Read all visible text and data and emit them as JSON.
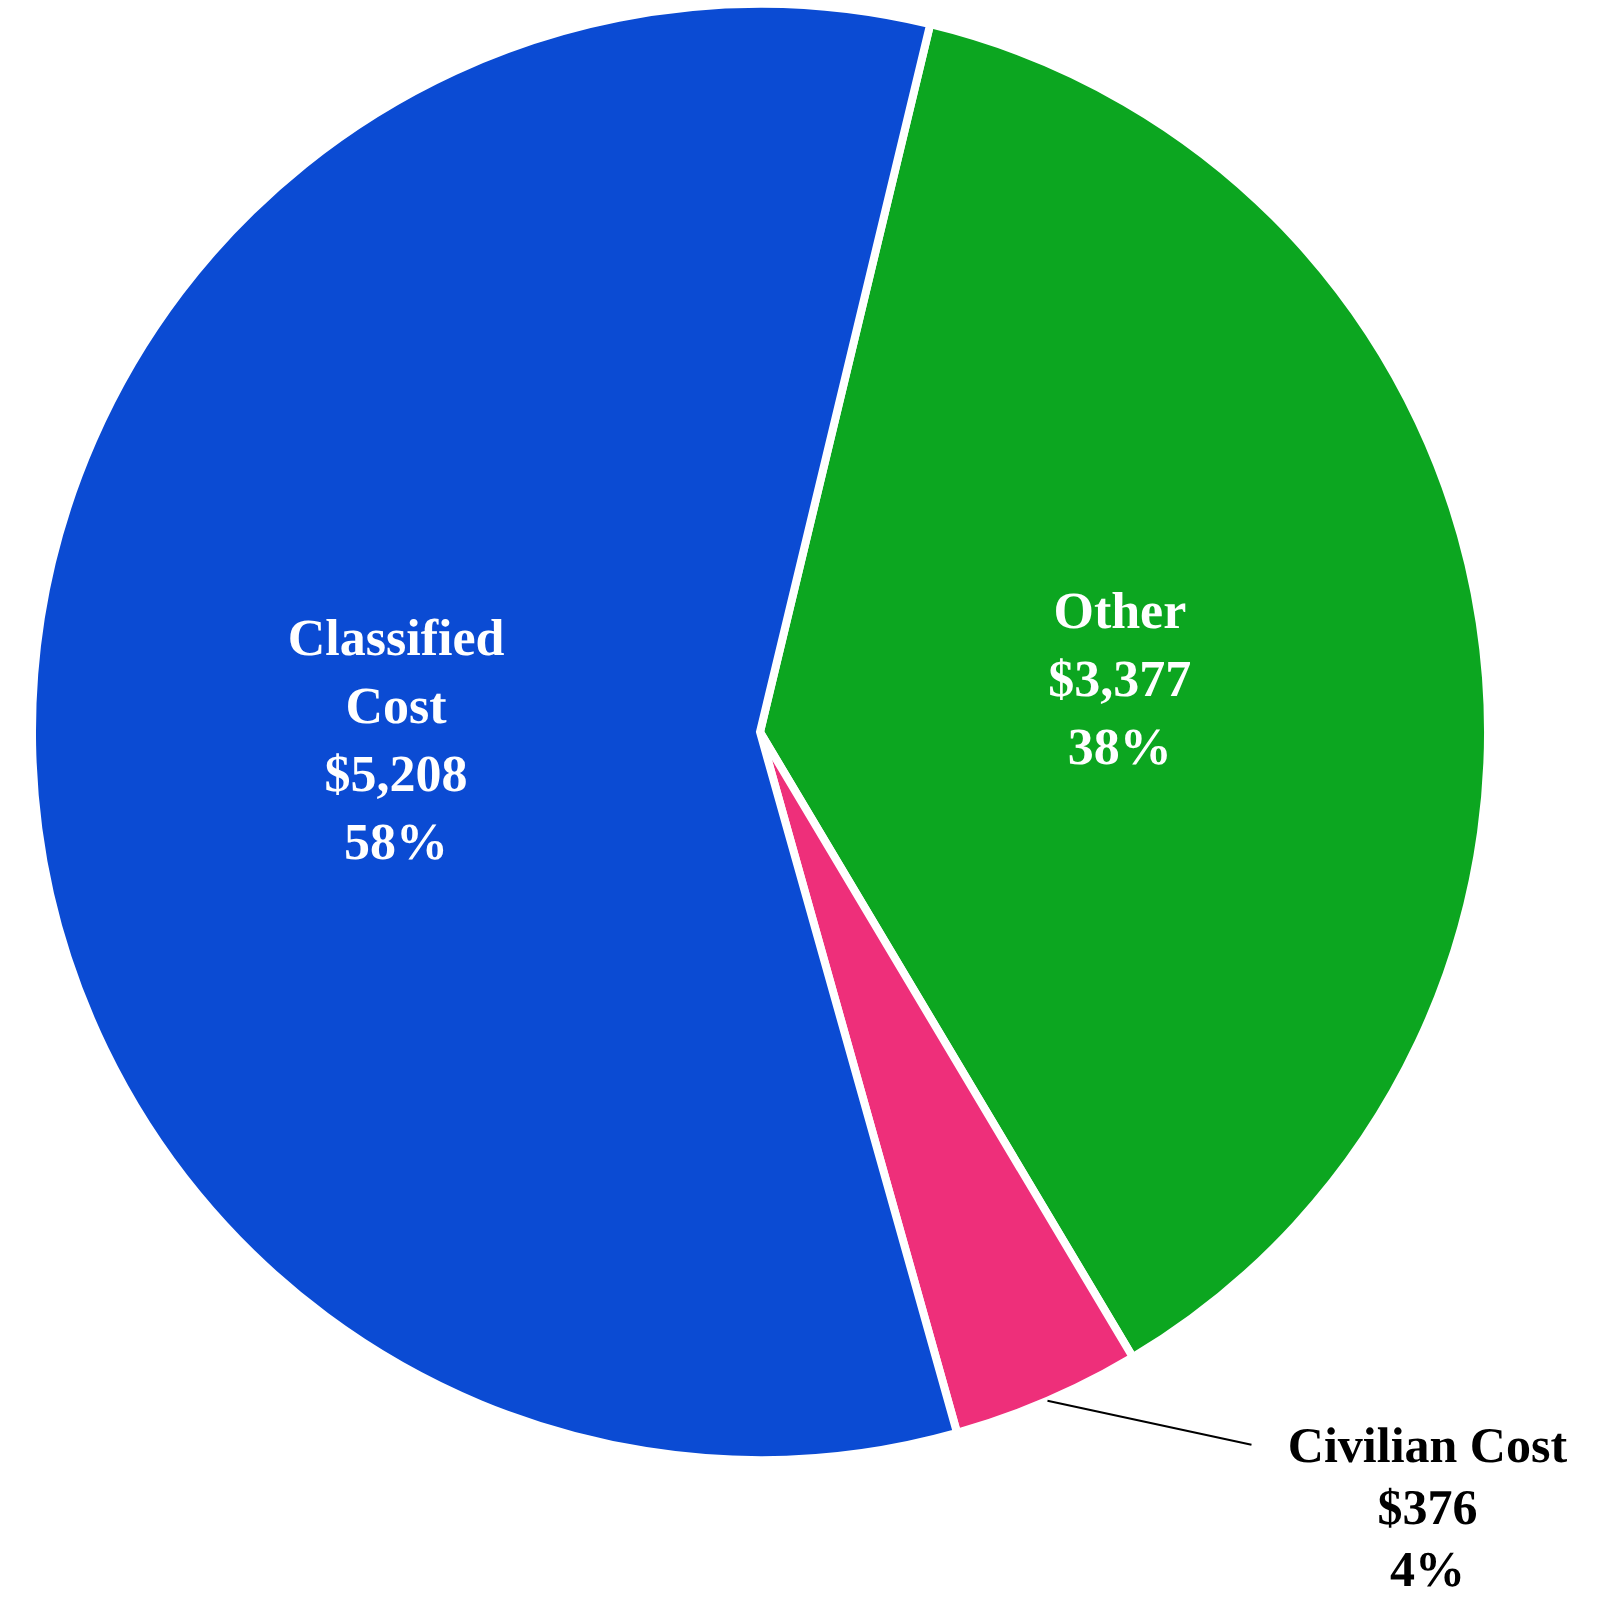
{
  "chart_data": {
    "type": "pie",
    "categories": [
      "Other",
      "Civilian Cost",
      "Classified Cost"
    ],
    "values": [
      3377,
      376,
      5208
    ],
    "colors": [
      "#0ca620",
      "#ee2f7a",
      "#0b4bd3"
    ],
    "value_labels": [
      "$3,377\n38%",
      "$376\n4%",
      "$5,208\n58%"
    ]
  }
}
